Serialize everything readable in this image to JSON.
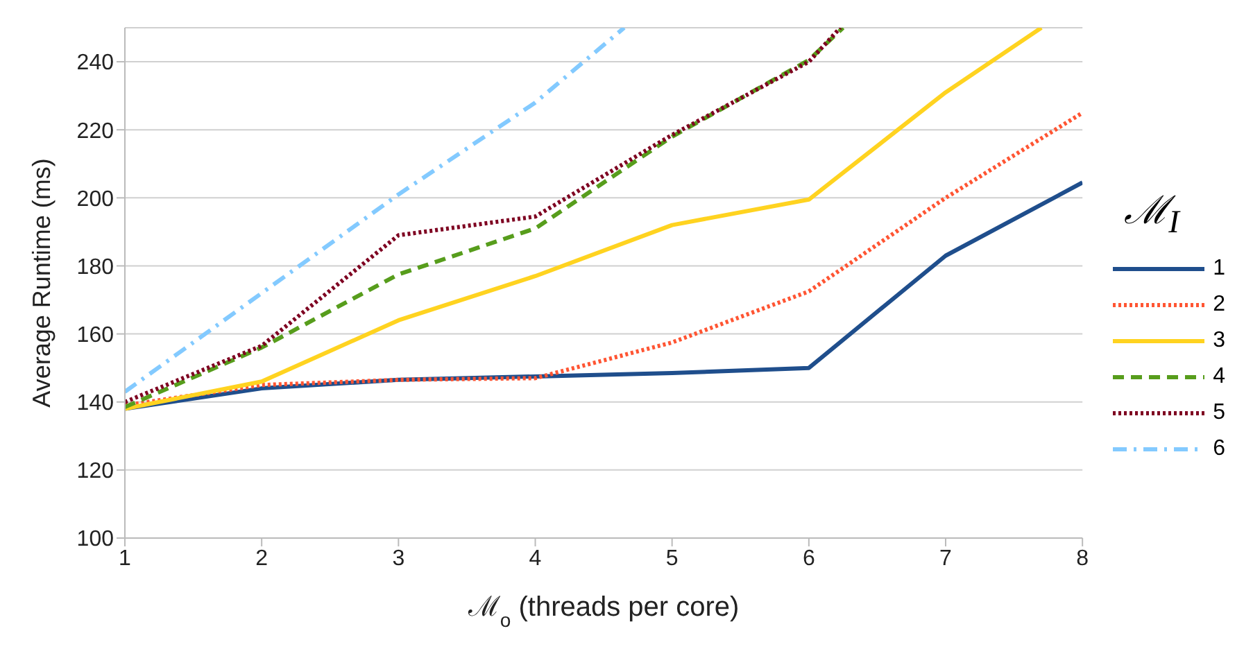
{
  "chart_data": {
    "type": "line",
    "xlabel": "ℳ$_{o}$ (threads per core)",
    "ylabel": "Average Runtime (ms)",
    "legend_title": "ℳ$_{I}$",
    "x": [
      1,
      2,
      3,
      4,
      5,
      6,
      7,
      8
    ],
    "xlim": [
      1,
      8
    ],
    "xticks": [
      1,
      2,
      3,
      4,
      5,
      6,
      7,
      8
    ],
    "ylim": [
      100,
      250
    ],
    "yticks": [
      100,
      120,
      140,
      160,
      180,
      200,
      220,
      240
    ],
    "grid": "y",
    "legend": "right",
    "marker": "none",
    "series": [
      {
        "name": "1",
        "color": "#1f4e8c",
        "line_style": "solid",
        "values": [
          138,
          144,
          146.5,
          147.5,
          148.5,
          150,
          183,
          204.5
        ]
      },
      {
        "name": "2",
        "color": "#ff5533",
        "line_style": "dotted",
        "values": [
          139,
          145,
          146.5,
          147,
          157.5,
          172.5,
          200,
          225
        ]
      },
      {
        "name": "3",
        "color": "#ffd320",
        "line_style": "solid",
        "x": [
          1,
          2,
          3,
          4,
          5,
          6,
          7,
          7.7
        ],
        "values": [
          138,
          146,
          164,
          177,
          192,
          199.5,
          231,
          250
        ]
      },
      {
        "name": "4",
        "color": "#579d1c",
        "line_style": "dashed",
        "x": [
          1,
          2,
          3,
          4,
          5,
          6,
          6.25
        ],
        "values": [
          138.5,
          156,
          177.5,
          191,
          218,
          240.5,
          250
        ]
      },
      {
        "name": "5",
        "color": "#7e0021",
        "line_style": "dotted",
        "x": [
          1,
          2,
          3,
          4,
          5,
          6,
          6.23
        ],
        "values": [
          140,
          156.5,
          189,
          194.5,
          218.5,
          240,
          250
        ]
      },
      {
        "name": "6",
        "color": "#83caff",
        "line_style": "dashdot",
        "x": [
          1,
          2,
          3,
          4,
          4.65
        ],
        "values": [
          143,
          172,
          201,
          228,
          250
        ]
      }
    ]
  }
}
